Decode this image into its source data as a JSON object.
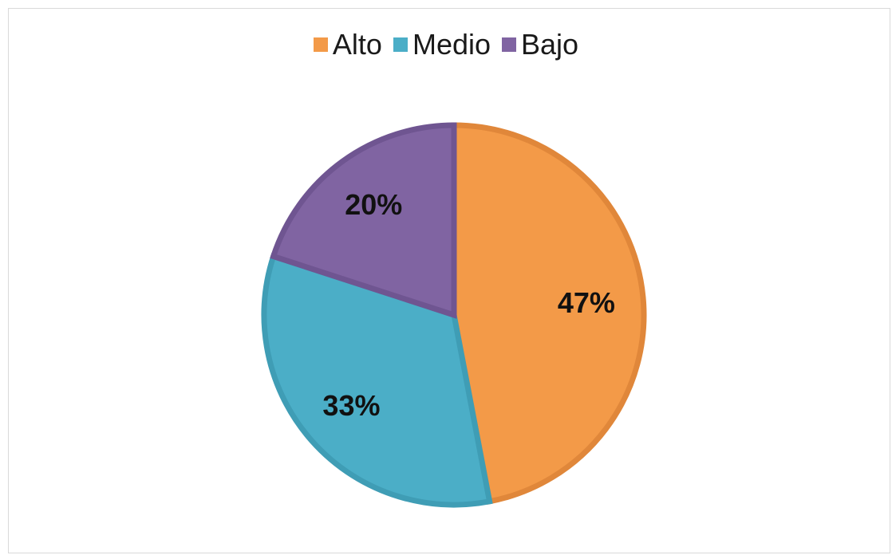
{
  "chart_data": {
    "type": "pie",
    "categories": [
      "Alto",
      "Medio",
      "Bajo"
    ],
    "values": [
      47,
      33,
      20
    ],
    "data_labels": [
      "47%",
      "33%",
      "20%"
    ],
    "colors": [
      "#F39A48",
      "#4BAEC7",
      "#8064A2"
    ],
    "border_colors": [
      "#E0873A",
      "#3F9DB5",
      "#6F5591"
    ],
    "legend_position": "top",
    "start_angle_deg": 0,
    "direction": "clockwise"
  }
}
